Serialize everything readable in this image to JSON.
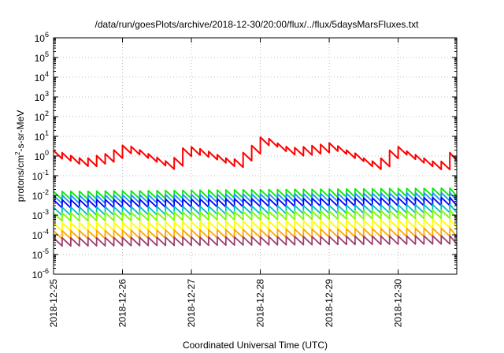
{
  "chart_data": {
    "type": "line",
    "title": "/data/run/goesPlots/archive/2018-12-30/20:00/flux/../flux/5daysMarsFluxes.txt",
    "xlabel": "Coordinated Universal Time (UTC)",
    "ylabel_base": "protons/cm",
    "ylabel_sup": "2",
    "ylabel_rest": "-s-sr-MeV",
    "yscale": "log",
    "ylim": [
      1e-06,
      1000000.0
    ],
    "y_ticks": [
      {
        "base": "10",
        "exp": "-6"
      },
      {
        "base": "10",
        "exp": "-5"
      },
      {
        "base": "10",
        "exp": "-4"
      },
      {
        "base": "10",
        "exp": "-3"
      },
      {
        "base": "10",
        "exp": "-2"
      },
      {
        "base": "10",
        "exp": "-1"
      },
      {
        "base": "10",
        "exp": "0"
      },
      {
        "base": "10",
        "exp": "1"
      },
      {
        "base": "10",
        "exp": "2"
      },
      {
        "base": "10",
        "exp": "3"
      },
      {
        "base": "10",
        "exp": "4"
      },
      {
        "base": "10",
        "exp": "5"
      },
      {
        "base": "10",
        "exp": "6"
      }
    ],
    "x_start": "2018-12-25",
    "x_tick_labels": [
      "2018-12-25",
      "2018-12-26",
      "2018-12-27",
      "2018-12-28",
      "2018-12-29",
      "2018-12-30"
    ],
    "x_days_range": [
      0,
      5.85
    ],
    "grid": true,
    "sawtooth_drop_ratio": 2.6,
    "series": [
      {
        "color": "#ff0000",
        "pulses_per_day": 8,
        "values": [
          [
            0.0,
            1.9
          ],
          [
            0.15,
            1.4
          ],
          [
            0.3,
            0.9
          ],
          [
            0.45,
            0.7
          ],
          [
            0.6,
            1.0
          ],
          [
            0.75,
            1.3
          ],
          [
            0.9,
            2.2
          ],
          [
            1.0,
            3.5
          ],
          [
            1.15,
            3.0
          ],
          [
            1.3,
            1.7
          ],
          [
            1.45,
            1.0
          ],
          [
            1.6,
            0.6
          ],
          [
            1.7,
            0.45
          ],
          [
            1.8,
            1.5
          ],
          [
            1.9,
            3.0
          ],
          [
            2.0,
            2.9
          ],
          [
            2.15,
            2.2
          ],
          [
            2.3,
            1.5
          ],
          [
            2.45,
            0.9
          ],
          [
            2.6,
            0.6
          ],
          [
            2.75,
            1.5
          ],
          [
            2.9,
            4.0
          ],
          [
            3.0,
            9.0
          ],
          [
            3.1,
            8.5
          ],
          [
            3.25,
            4.5
          ],
          [
            3.4,
            2.8
          ],
          [
            3.55,
            2.6
          ],
          [
            3.7,
            3.3
          ],
          [
            3.85,
            3.5
          ],
          [
            3.95,
            5.2
          ],
          [
            4.1,
            3.6
          ],
          [
            4.25,
            2.0
          ],
          [
            4.4,
            1.3
          ],
          [
            4.55,
            0.6
          ],
          [
            4.7,
            0.5
          ],
          [
            4.85,
            1.8
          ],
          [
            5.0,
            3.0
          ],
          [
            5.15,
            1.6
          ],
          [
            5.3,
            1.0
          ],
          [
            5.45,
            0.6
          ],
          [
            5.6,
            0.45
          ],
          [
            5.7,
            0.9
          ],
          [
            5.75,
            1.5
          ],
          [
            5.85,
            2.1
          ]
        ]
      },
      {
        "color": "#00ee00",
        "pulses_per_day": 8,
        "values": [
          [
            0.0,
            0.016
          ],
          [
            5.85,
            0.024
          ]
        ]
      },
      {
        "color": "#1e90ff",
        "pulses_per_day": 8,
        "values": [
          [
            0.0,
            0.01
          ],
          [
            5.85,
            0.014
          ]
        ]
      },
      {
        "color": "#0000ff",
        "pulses_per_day": 8,
        "values": [
          [
            0.0,
            0.006
          ],
          [
            5.85,
            0.008
          ]
        ]
      },
      {
        "color": "#00bfbf",
        "pulses_per_day": 8,
        "values": [
          [
            0.0,
            0.0025
          ],
          [
            5.85,
            0.0035
          ]
        ]
      },
      {
        "color": "#7cfc00",
        "pulses_per_day": 8,
        "values": [
          [
            0.0,
            0.0013
          ],
          [
            5.85,
            0.0018
          ]
        ]
      },
      {
        "color": "#ffff00",
        "pulses_per_day": 8,
        "values": [
          [
            0.0,
            0.0004
          ],
          [
            5.85,
            0.0006
          ]
        ]
      },
      {
        "color": "#ffa500",
        "pulses_per_day": 8,
        "values": [
          [
            0.0,
            0.00016
          ],
          [
            5.85,
            0.00022
          ]
        ]
      },
      {
        "color": "#9b3f6f",
        "pulses_per_day": 8,
        "values": [
          [
            0.0,
            7e-05
          ],
          [
            5.85,
            9e-05
          ]
        ]
      }
    ]
  }
}
